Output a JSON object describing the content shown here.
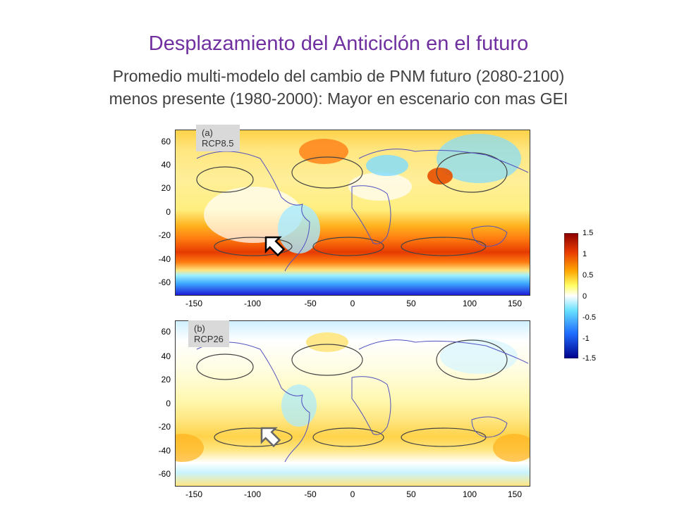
{
  "slide": {
    "title": "Desplazamiento del Anticiclón en el futuro",
    "subtitle_line1": "Promedio multi-modelo del cambio de PNM futuro (2080-2100)",
    "subtitle_line2": "menos presente (1980-2000): Mayor en escenario con mas GEI"
  },
  "panels": [
    {
      "label": "(a) RCP8.5",
      "scenario": "rcp85"
    },
    {
      "label": "(b) RCP26",
      "scenario": "rcp26"
    }
  ],
  "axes": {
    "y_ticks": [
      "60",
      "40",
      "20",
      "0",
      "-20",
      "-40",
      "-60"
    ],
    "x_ticks": [
      "-150",
      "-100",
      "-50",
      "0",
      "50",
      "100",
      "150"
    ]
  },
  "colorbar": {
    "ticks": [
      "1.5",
      "1",
      "0.5",
      "0",
      "-0.5",
      "-1",
      "-1.5"
    ],
    "colors": [
      "#8b0000",
      "#e83a00",
      "#ffa500",
      "#ffff66",
      "#ffffff",
      "#66e0ff",
      "#1e6cff",
      "#00008b"
    ]
  },
  "icons": [
    "arrow-icon"
  ]
}
